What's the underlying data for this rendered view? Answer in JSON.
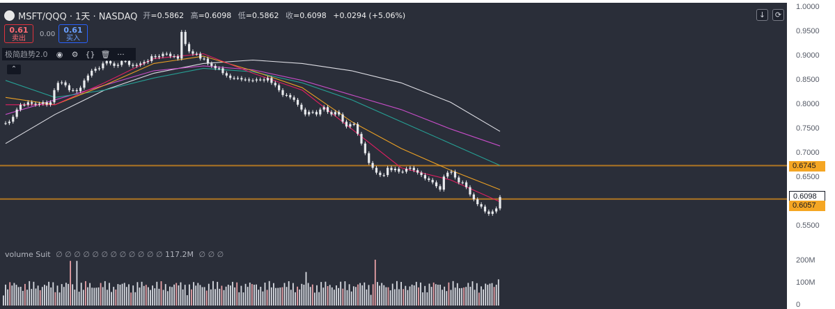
{
  "header": {
    "symbol": "MSFT/QQQ · 1天 · NASDAQ",
    "open_label": "开",
    "open_value": "=0.5862",
    "high_label": "高",
    "high_value": "=0.6098",
    "low_label": "低",
    "low_value": "=0.5862",
    "close_label": "收",
    "close_value": "=0.6098",
    "change": "+0.0294 (+5.06%)"
  },
  "trade": {
    "sell_price": "0.61",
    "sell_label": "卖出",
    "spread": "0.00",
    "buy_price": "0.61",
    "buy_label": "买入"
  },
  "indicator": {
    "name": "极简趋势2.0",
    "icons": [
      "eye-icon",
      "gear-icon",
      "braces-icon",
      "trash-icon",
      "more-icon"
    ],
    "collapse_icon": "chevron-up-icon"
  },
  "toolbar": {
    "download_icon": "arrow-down-icon",
    "refresh_icon": "refresh-icon"
  },
  "volume_legend": {
    "name": "volume Suit",
    "pre_symbols": "∅ ∅ ∅ ∅ ∅ ∅ ∅ ∅ ∅ ∅ ∅ ∅",
    "value": "117.2M",
    "post_symbols": "∅ ∅ ∅"
  },
  "colors": {
    "background": "#2a2e39",
    "candle": "#e8eaed",
    "orange_line": "#f5a623",
    "pink_line": "#e040fb",
    "level_line": "#c9841f",
    "sell": "#e2333d",
    "buy": "#2962ff"
  },
  "chart_data": {
    "type": "line",
    "title": "MSFT/QQQ · 1天 · NASDAQ",
    "y_ticks": [
      "1.0000",
      "0.9500",
      "0.9000",
      "0.8500",
      "0.8000",
      "0.7500",
      "0.7000",
      "0.6500",
      "0.6000",
      "0.5500"
    ],
    "ylim": [
      0.535,
      1.0
    ],
    "price_labels": [
      {
        "value": 0.6745,
        "text": "0.6745",
        "color": "#f5a623"
      },
      {
        "value": 0.6098,
        "text": "0.6098",
        "color": "#ffffff"
      },
      {
        "value": 0.6057,
        "text": "0.6057",
        "color": "#f5a623"
      }
    ],
    "horizontal_levels": [
      0.6745,
      0.6057
    ],
    "close_series": [
      0.762,
      0.765,
      0.775,
      0.79,
      0.8,
      0.8,
      0.805,
      0.802,
      0.8,
      0.802,
      0.805,
      0.8,
      0.805,
      0.83,
      0.845,
      0.846,
      0.84,
      0.83,
      0.83,
      0.828,
      0.835,
      0.85,
      0.86,
      0.87,
      0.874,
      0.875,
      0.885,
      0.89,
      0.885,
      0.88,
      0.882,
      0.89,
      0.89,
      0.882,
      0.88,
      0.882,
      0.885,
      0.888,
      0.89,
      0.9,
      0.898,
      0.9,
      0.905,
      0.905,
      0.9,
      0.9,
      0.895,
      0.95,
      0.925,
      0.91,
      0.905,
      0.905,
      0.895,
      0.895,
      0.885,
      0.88,
      0.875,
      0.875,
      0.865,
      0.86,
      0.855,
      0.855,
      0.855,
      0.852,
      0.852,
      0.85,
      0.85,
      0.852,
      0.852,
      0.85,
      0.855,
      0.845,
      0.84,
      0.83,
      0.82,
      0.82,
      0.815,
      0.81,
      0.8,
      0.79,
      0.78,
      0.785,
      0.785,
      0.78,
      0.79,
      0.795,
      0.785,
      0.78,
      0.785,
      0.78,
      0.765,
      0.755,
      0.76,
      0.76,
      0.74,
      0.72,
      0.7,
      0.68,
      0.67,
      0.66,
      0.655,
      0.655,
      0.67,
      0.665,
      0.668,
      0.662,
      0.662,
      0.668,
      0.67,
      0.665,
      0.66,
      0.655,
      0.648,
      0.645,
      0.64,
      0.632,
      0.625,
      0.652,
      0.66,
      0.662,
      0.65,
      0.64,
      0.64,
      0.63,
      0.615,
      0.605,
      0.595,
      0.59,
      0.58,
      0.575,
      0.58,
      0.5862,
      0.6098
    ],
    "ma_lines": [
      {
        "color": "#e8e8ee",
        "values": [
          0.72,
          0.78,
          0.83,
          0.865,
          0.885,
          0.892,
          0.885,
          0.87,
          0.845,
          0.805,
          0.745
        ]
      },
      {
        "color": "#d04fd0",
        "values": [
          0.78,
          0.81,
          0.84,
          0.87,
          0.88,
          0.872,
          0.85,
          0.82,
          0.79,
          0.75,
          0.715
        ]
      },
      {
        "color": "#26a69a",
        "values": [
          0.85,
          0.815,
          0.83,
          0.855,
          0.875,
          0.868,
          0.845,
          0.81,
          0.765,
          0.72,
          0.675
        ]
      },
      {
        "color": "#f5a623",
        "values": [
          0.815,
          0.8,
          0.84,
          0.885,
          0.9,
          0.87,
          0.835,
          0.765,
          0.71,
          0.665,
          0.625
        ]
      },
      {
        "color": "#e91e63",
        "values": [
          0.8,
          0.8,
          0.845,
          0.895,
          0.905,
          0.865,
          0.83,
          0.75,
          0.67,
          0.645,
          0.6
        ]
      }
    ],
    "volume": {
      "ticks": [
        "200M",
        "100M",
        "0"
      ],
      "ylim": [
        0,
        230
      ],
      "latest": 117.2
    }
  }
}
